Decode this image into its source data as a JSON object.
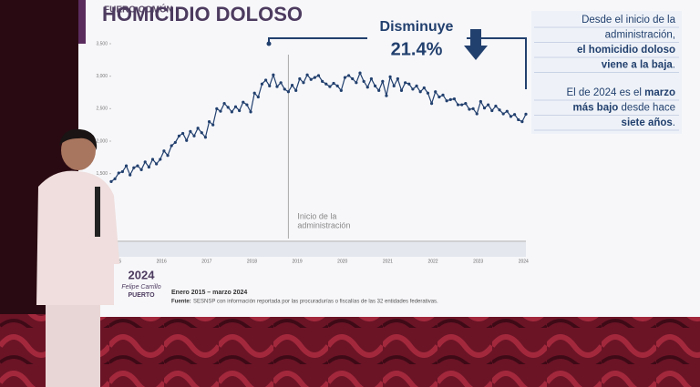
{
  "chart_data": {
    "type": "line",
    "kicker": "FUERO COMÚN",
    "title": "HOMICIDIO DOLOSO",
    "annotation": {
      "label": "Disminuye",
      "value": "21.4%"
    },
    "event_label": [
      "Inicio de la",
      "administración"
    ],
    "event_index": 47,
    "period": "Enero 2015 – marzo 2024",
    "source_label": "Fuente:",
    "source": "SESNSP con información reportada por las procuradurías o fiscalías de las 32 entidades federativas.",
    "logo": [
      "2024",
      "Felipe Carrillo",
      "PUERTO"
    ],
    "notes": [
      [
        [
          {
            "text": "Desde el inicio de la",
            "bold": false
          }
        ],
        [
          {
            "text": "administración,",
            "bold": false
          }
        ],
        [
          {
            "text": "el homicidio doloso",
            "bold": true
          }
        ],
        [
          {
            "text": "viene a la baja",
            "bold": true
          },
          {
            "text": ".",
            "bold": false
          }
        ]
      ],
      [
        [
          {
            "text": "El de 2024 es el ",
            "bold": false
          },
          {
            "text": "marzo",
            "bold": true
          }
        ],
        [
          {
            "text": "más bajo",
            "bold": true
          },
          {
            "text": " desde hace",
            "bold": false
          }
        ],
        [
          {
            "text": "siete años",
            "bold": true
          },
          {
            "text": ".",
            "bold": false
          }
        ]
      ]
    ],
    "categories": [
      "2015",
      null,
      null,
      null,
      null,
      null,
      null,
      null,
      null,
      null,
      null,
      null,
      "2016",
      null,
      null,
      null,
      null,
      null,
      null,
      null,
      null,
      null,
      null,
      null,
      "2017",
      null,
      null,
      null,
      null,
      null,
      null,
      null,
      null,
      null,
      null,
      null,
      "2018",
      null,
      null,
      null,
      null,
      null,
      null,
      null,
      null,
      null,
      null,
      null,
      "2019",
      null,
      null,
      null,
      null,
      null,
      null,
      null,
      null,
      null,
      null,
      null,
      "2020",
      null,
      null,
      null,
      null,
      null,
      null,
      null,
      null,
      null,
      null,
      null,
      "2021",
      null,
      null,
      null,
      null,
      null,
      null,
      null,
      null,
      null,
      null,
      null,
      "2022",
      null,
      null,
      null,
      null,
      null,
      null,
      null,
      null,
      null,
      null,
      null,
      "2023",
      null,
      null,
      null,
      null,
      null,
      null,
      null,
      null,
      null,
      null,
      null,
      "2024",
      null,
      null
    ],
    "series": [
      {
        "name": "Homicidio doloso",
        "color": "#22406e",
        "values": [
          1378,
          1420,
          1510,
          1530,
          1620,
          1480,
          1590,
          1620,
          1560,
          1680,
          1600,
          1720,
          1650,
          1720,
          1850,
          1780,
          1930,
          1980,
          2080,
          2120,
          2010,
          2150,
          2080,
          2200,
          2130,
          2060,
          2300,
          2250,
          2500,
          2460,
          2580,
          2520,
          2450,
          2530,
          2470,
          2600,
          2560,
          2450,
          2740,
          2680,
          2880,
          2940,
          2850,
          3020,
          2840,
          2900,
          2800,
          2760,
          2860,
          2780,
          2960,
          2900,
          3020,
          2950,
          2980,
          3010,
          2920,
          2880,
          2840,
          2890,
          2850,
          2780,
          2980,
          3010,
          2960,
          2900,
          3050,
          2920,
          2830,
          2960,
          2850,
          2780,
          2920,
          2700,
          2990,
          2850,
          2960,
          2780,
          2900,
          2880,
          2800,
          2850,
          2760,
          2820,
          2740,
          2580,
          2760,
          2680,
          2710,
          2620,
          2640,
          2650,
          2560,
          2560,
          2580,
          2490,
          2500,
          2420,
          2610,
          2510,
          2560,
          2470,
          2540,
          2480,
          2420,
          2460,
          2380,
          2410,
          2330,
          2300,
          2415
        ]
      }
    ],
    "ylim": [
      500,
      3500
    ],
    "yticks": [
      {
        "value": 1500,
        "label": "1,500"
      },
      {
        "value": 2000,
        "label": "2,000"
      },
      {
        "value": 2500,
        "label": "2,500"
      },
      {
        "value": 3000,
        "label": "3,000"
      },
      {
        "value": 3500,
        "label": "3,500"
      }
    ],
    "grid": false
  }
}
